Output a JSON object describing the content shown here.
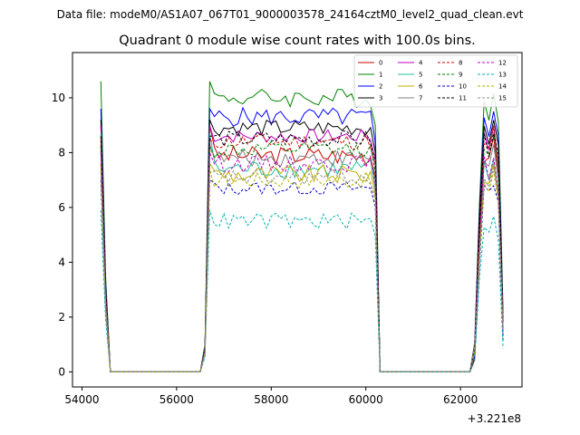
{
  "figure": {
    "suptitle": "Data file: modeM0/AS1A07_067T01_9000003578_24164cztM0_level2_quad_clean.evt",
    "title": "Quadrant 0 module wise count rates with 100.0s bins.",
    "x_offset_label": "+3.221e8"
  },
  "chart_data": {
    "type": "line",
    "title": "Quadrant 0 module wise count rates with 100.0s bins.",
    "xlabel": "",
    "ylabel": "",
    "xlim": [
      53800,
      63300
    ],
    "ylim": [
      -0.55,
      11.65
    ],
    "x_ticks": [
      54000,
      56000,
      58000,
      60000,
      62000
    ],
    "x_tick_labels": [
      "54000",
      "56000",
      "58000",
      "60000",
      "62000"
    ],
    "y_ticks": [
      0,
      2,
      4,
      6,
      8,
      10
    ],
    "y_tick_labels": [
      "0",
      "2",
      "4",
      "6",
      "8",
      "10"
    ],
    "x_offset": "+3.221e8",
    "grid": false,
    "legend_position": "top-right",
    "legend_columns": 4,
    "bins_s": 100,
    "segments": [
      {
        "start": 54400,
        "end": 54500
      },
      {
        "start": 56600,
        "end": 60200
      },
      {
        "start": 62300,
        "end": 62900
      }
    ],
    "series": [
      {
        "name": "0",
        "color": "#d00000",
        "dash": "solid",
        "level": 7.9,
        "spike": 9.0,
        "noise": 0.35
      },
      {
        "name": "1",
        "color": "#008000",
        "dash": "solid",
        "level": 10.0,
        "spike": 10.6,
        "noise": 0.35
      },
      {
        "name": "2",
        "color": "#0000ff",
        "dash": "solid",
        "level": 9.3,
        "spike": 9.6,
        "noise": 0.35
      },
      {
        "name": "3",
        "color": "#000000",
        "dash": "solid",
        "level": 8.9,
        "spike": 9.2,
        "noise": 0.3
      },
      {
        "name": "4",
        "color": "#c000c0",
        "dash": "solid",
        "level": 8.6,
        "spike": 9.0,
        "noise": 0.25
      },
      {
        "name": "5",
        "color": "#20c0a0",
        "dash": "solid",
        "level": 7.4,
        "spike": 8.7,
        "noise": 0.35
      },
      {
        "name": "6",
        "color": "#c0b000",
        "dash": "solid",
        "level": 7.2,
        "spike": 7.6,
        "noise": 0.35
      },
      {
        "name": "7",
        "color": "#808080",
        "dash": "solid",
        "level": 7.8,
        "spike": 8.3,
        "noise": 0.3
      },
      {
        "name": "8",
        "color": "#d00000",
        "dash": "dashed",
        "level": 8.4,
        "spike": 8.5,
        "noise": 0.3
      },
      {
        "name": "9",
        "color": "#008000",
        "dash": "dashed",
        "level": 8.1,
        "spike": 8.2,
        "noise": 0.3
      },
      {
        "name": "10",
        "color": "#0000cc",
        "dash": "dashed",
        "level": 6.7,
        "spike": 7.0,
        "noise": 0.25
      },
      {
        "name": "11",
        "color": "#000000",
        "dash": "dashed",
        "level": 8.5,
        "spike": 8.6,
        "noise": 0.3
      },
      {
        "name": "12",
        "color": "#c000c0",
        "dash": "dashed",
        "level": 7.6,
        "spike": 8.0,
        "noise": 0.3
      },
      {
        "name": "13",
        "color": "#00b0b0",
        "dash": "dashed",
        "level": 5.5,
        "spike": 5.9,
        "noise": 0.3
      },
      {
        "name": "14",
        "color": "#b0b000",
        "dash": "dashed",
        "level": 7.0,
        "spike": 7.4,
        "noise": 0.3
      },
      {
        "name": "15",
        "color": "#909090",
        "dash": "dashed",
        "level": 7.1,
        "spike": 7.3,
        "noise": 0.3
      }
    ]
  }
}
